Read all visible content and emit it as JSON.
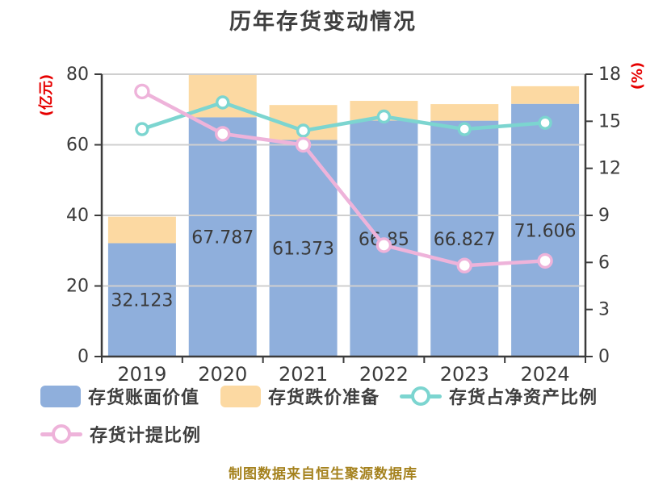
{
  "title": "历年存货变动情况",
  "footer": "制图数据来自恒生聚源数据库",
  "left_axis": {
    "label": "(亿元)",
    "ticks": [
      0,
      20,
      40,
      60,
      80
    ],
    "max": 80,
    "label_color": "#e60000"
  },
  "right_axis": {
    "label": "(%)",
    "ticks": [
      0,
      3,
      6,
      9,
      12,
      15,
      18
    ],
    "max": 18,
    "label_color": "#e60000"
  },
  "chart_data": {
    "type": "bar",
    "title": "历年存货变动情况",
    "categories": [
      "2019",
      "2020",
      "2021",
      "2022",
      "2023",
      "2024"
    ],
    "series": [
      {
        "id": "book-value",
        "name": "存货账面价值",
        "type": "bar",
        "stack": true,
        "axis": "left",
        "color": "#8fafdc",
        "values": [
          32.123,
          67.787,
          61.373,
          66.85,
          66.827,
          71.606
        ],
        "labels": [
          "32.123",
          "67.787",
          "61.373",
          "66.85",
          "66.827",
          "71.606"
        ]
      },
      {
        "id": "depreciation-reserve",
        "name": "存货跌价准备",
        "type": "bar",
        "stack": true,
        "axis": "left",
        "color": "#fcd9a2",
        "values": [
          7.5,
          12.0,
          9.9,
          5.6,
          4.7,
          5.0
        ]
      },
      {
        "id": "net-asset-ratio",
        "name": "存货占净资产比例",
        "type": "line",
        "axis": "right",
        "color": "#7cd5d0",
        "values": [
          14.5,
          16.2,
          14.4,
          15.3,
          14.5,
          14.9
        ]
      },
      {
        "id": "provision-ratio",
        "name": "存货计提比例",
        "type": "line",
        "axis": "right",
        "color": "#eeb3da",
        "values": [
          16.9,
          14.2,
          13.5,
          7.1,
          5.8,
          6.1
        ]
      }
    ],
    "ylabel_left": "(亿元)",
    "ylabel_right": "(%)",
    "ylim_left": [
      0,
      80
    ],
    "ylim_right": [
      0,
      18
    ],
    "grid": true,
    "legend_position": "bottom"
  },
  "legend": {
    "items": [
      {
        "label": "存货账面价值",
        "type": "bar",
        "color": "#8fafdc"
      },
      {
        "label": "存货跌价准备",
        "type": "bar",
        "color": "#fcd9a2"
      },
      {
        "label": "存货占净资产比例",
        "type": "line",
        "color": "#7cd5d0"
      },
      {
        "label": "存货计提比例",
        "type": "line",
        "color": "#eeb3da"
      }
    ]
  },
  "style_colors": {
    "grid": "#cfcfcf",
    "axis": "#3b3b3b",
    "tick_text": "#3b3b3b",
    "bar_label_text": "#3a3a3a",
    "title_text": "#3f3f3f",
    "footer_text": "#a5821e"
  }
}
